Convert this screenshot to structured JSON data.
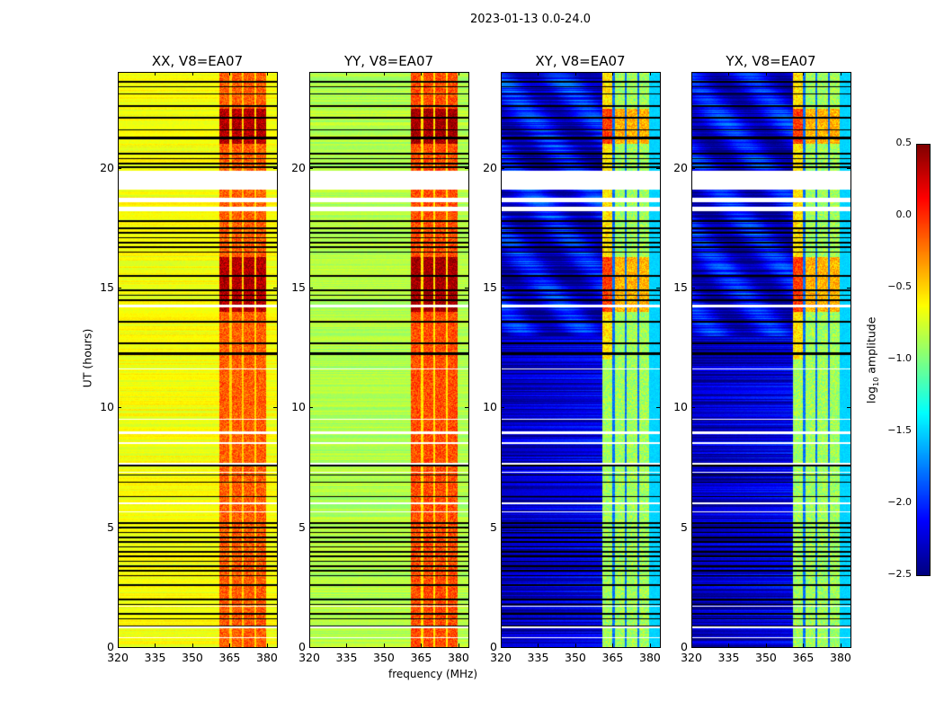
{
  "chart_data": {
    "type": "heatmap",
    "suptitle": "2023-01-13 0.0-24.0",
    "xlabel": "frequency (MHz)",
    "ylabel": "UT (hours)",
    "xlim": [
      320,
      384
    ],
    "ylim": [
      0,
      24
    ],
    "xticks": [
      "320",
      "335",
      "350",
      "365",
      "380"
    ],
    "xtick_values": [
      320,
      335,
      350,
      365,
      380
    ],
    "yticks": [
      "0",
      "5",
      "10",
      "15",
      "20"
    ],
    "ytick_values": [
      0,
      5,
      10,
      15,
      20
    ],
    "colormap": "jet",
    "colorbar": {
      "label": "log10 amplitude",
      "label_main": "log",
      "label_sub": "10",
      "label_rest": " amplitude",
      "range": [
        -2.5,
        0.5
      ],
      "ticks": [
        "0.5",
        "0.0",
        "−0.5",
        "−1.0",
        "−1.5",
        "−2.0",
        "−2.5"
      ],
      "tick_values": [
        0.5,
        0.0,
        -0.5,
        -1.0,
        -1.5,
        -2.0,
        -2.5
      ]
    },
    "panels": [
      {
        "title": "XX, V8=EA07",
        "pol": "XX",
        "base": -0.65,
        "band": -0.15,
        "gap": -0.5
      },
      {
        "title": "YY, V8=EA07",
        "pol": "YY",
        "base": -0.85,
        "band": -0.1,
        "gap": -0.55
      },
      {
        "title": "XY, V8=EA07",
        "pol": "XY",
        "base": -2.2,
        "band": -0.9,
        "gap": -1.8
      },
      {
        "title": "YX, V8=EA07",
        "pol": "YX",
        "base": -2.2,
        "band": -0.9,
        "gap": -1.8
      }
    ],
    "subbands_mhz": [
      [
        360.5,
        364.8
      ],
      [
        365.6,
        369.8
      ],
      [
        370.6,
        374.6
      ],
      [
        375.6,
        379.3
      ]
    ],
    "flagged_hours_white": [
      [
        19.1,
        19.9
      ],
      [
        18.6,
        18.75
      ],
      [
        18.2,
        18.4
      ],
      [
        14.2,
        14.3
      ],
      [
        13.55,
        13.6
      ],
      [
        11.6,
        11.65
      ],
      [
        9.5,
        9.55
      ],
      [
        8.9,
        9.0
      ],
      [
        8.5,
        8.55
      ],
      [
        7.55,
        7.7
      ],
      [
        7.3,
        7.35
      ],
      [
        6.0,
        6.05
      ],
      [
        5.65,
        5.7
      ],
      [
        2.6,
        2.65
      ],
      [
        1.7,
        1.75
      ],
      [
        0.8,
        0.9
      ],
      [
        0.4,
        0.45
      ]
    ],
    "flagged_hours_black": [
      23.6,
      23.4,
      23.1,
      22.6,
      22.1,
      21.6,
      21.3,
      21.25,
      20.6,
      20.4,
      20.2,
      20.05,
      17.8,
      17.5,
      17.3,
      17.1,
      16.9,
      16.7,
      16.5,
      15.5,
      14.9,
      14.7,
      14.5,
      13.6,
      12.7,
      12.3,
      12.25,
      7.6,
      7.2,
      6.9,
      6.3,
      5.2,
      5.0,
      4.8,
      4.6,
      4.4,
      4.2,
      4.0,
      3.8,
      3.6,
      3.4,
      3.2,
      3.0,
      2.6,
      2.0,
      1.8,
      1.4,
      1.2,
      0.9
    ]
  }
}
